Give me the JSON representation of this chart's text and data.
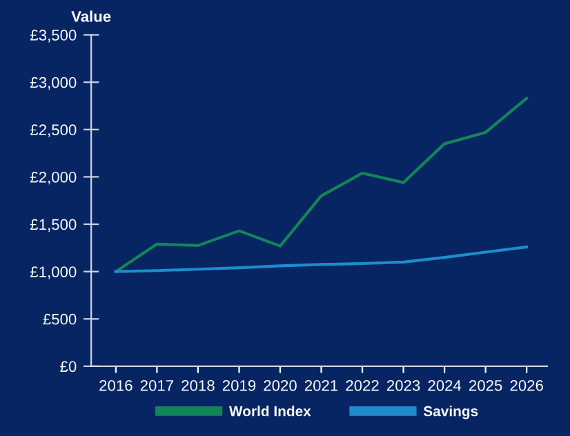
{
  "chart_data": {
    "type": "line",
    "ylabel": "Value",
    "categories": [
      "2016",
      "2017",
      "2018",
      "2019",
      "2020",
      "2021",
      "2022",
      "2023",
      "2024",
      "2025",
      "2026"
    ],
    "series": [
      {
        "name": "World Index",
        "color": "#13855a",
        "values": [
          1000,
          1290,
          1275,
          1430,
          1270,
          1800,
          2040,
          1940,
          2350,
          2470,
          2830
        ]
      },
      {
        "name": "Savings",
        "color": "#1e8ccc",
        "values": [
          1000,
          1010,
          1025,
          1040,
          1060,
          1075,
          1085,
          1100,
          1150,
          1205,
          1260
        ]
      }
    ],
    "ylim": [
      0,
      3500
    ],
    "yticks": [
      {
        "value": 0,
        "label": "£0"
      },
      {
        "value": 500,
        "label": "£500"
      },
      {
        "value": 1000,
        "label": "£1,000"
      },
      {
        "value": 1500,
        "label": "£1,500"
      },
      {
        "value": 2000,
        "label": "£2,000"
      },
      {
        "value": 2500,
        "label": "£2,500"
      },
      {
        "value": 3000,
        "label": "£3,000"
      },
      {
        "value": 3500,
        "label": "£3,500"
      }
    ],
    "grid": false,
    "legend": "bottom",
    "line_style": "solid",
    "marker": "none"
  }
}
